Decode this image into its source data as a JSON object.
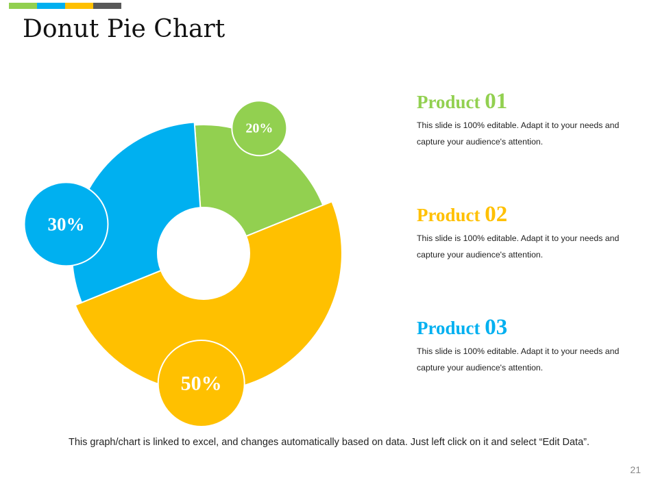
{
  "accent_colors": [
    "#92d050",
    "#00b0f0",
    "#ffc000",
    "#595959"
  ],
  "title": "Donut Pie Chart",
  "chart_data": {
    "type": "pie",
    "style": "donut",
    "categories": [
      "Product 01",
      "Product 02",
      "Product 03"
    ],
    "values": [
      20,
      50,
      30
    ],
    "labels": [
      "20%",
      "50%",
      "30%"
    ],
    "colors": [
      "#92d050",
      "#ffc000",
      "#00b0f0"
    ]
  },
  "products": [
    {
      "word": "Product",
      "number": "01",
      "color": "#92d050",
      "description": "This slide is 100% editable. Adapt it to your needs and capture your audience's attention."
    },
    {
      "word": "Product",
      "number": "02",
      "color": "#ffc000",
      "description": "This slide is 100% editable. Adapt it to your needs and capture your audience's attention."
    },
    {
      "word": "Product",
      "number": "03",
      "color": "#00b0f0",
      "description": "This slide is 100% editable. Adapt it to your needs and capture your audience's attention."
    }
  ],
  "footnote": "This graph/chart is linked to excel, and changes automatically  based on data. Just left click on it and select “Edit Data”.",
  "page_number": "21"
}
